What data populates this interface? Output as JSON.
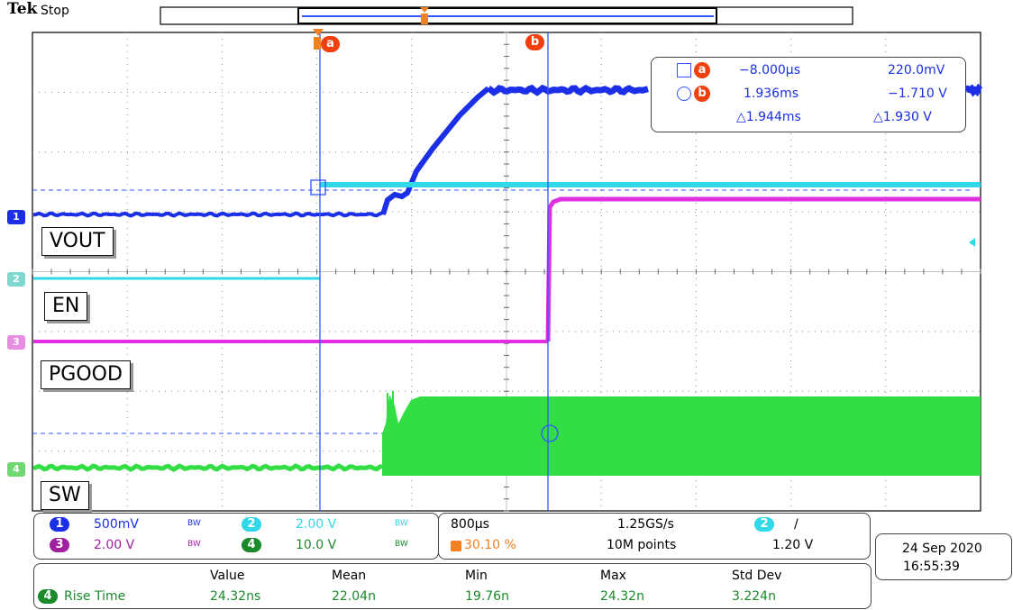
{
  "header": {
    "brand": "Tek",
    "state": "Stop"
  },
  "colors": {
    "ch1": "#1a2fe6",
    "ch2": "#30d8e8",
    "ch3": "#e030e0",
    "ch4": "#33dd44",
    "cursor": "#3355ff",
    "accent": "#f08020"
  },
  "traces": [
    {
      "channel": "1",
      "label": "VOUT"
    },
    {
      "channel": "2",
      "label": "EN"
    },
    {
      "channel": "3",
      "label": "PGOOD"
    },
    {
      "channel": "4",
      "label": "SW"
    }
  ],
  "cursors": {
    "a": {
      "id": "a",
      "time": "−8.000µs",
      "value": "220.0mV"
    },
    "b": {
      "id": "b",
      "time": "1.936ms",
      "value": "−1.710 V"
    },
    "delta": {
      "time": "△1.944ms",
      "value": "△1.930 V"
    }
  },
  "channels": [
    {
      "num": "1",
      "scale": "500mV",
      "bw": "BW"
    },
    {
      "num": "2",
      "scale": "2.00 V",
      "bw": "BW"
    },
    {
      "num": "3",
      "scale": "2.00 V",
      "bw": "BW"
    },
    {
      "num": "4",
      "scale": "10.0 V",
      "bw": "BW"
    }
  ],
  "horizontal": {
    "scale": "800µs",
    "trigger_position": "30.10 %",
    "sample_rate": "1.25GS/s",
    "record_length": "10M points"
  },
  "trigger": {
    "source": "2",
    "slope": "/",
    "level": "1.20 V"
  },
  "timestamp": {
    "date": "24 Sep  2020",
    "time": "16:55:39"
  },
  "measurements": {
    "headers": [
      "Value",
      "Mean",
      "Min",
      "Max",
      "Std Dev"
    ],
    "rows": [
      {
        "source": "4",
        "name": "Rise Time",
        "value": "24.32ns",
        "mean": "22.04n",
        "min": "19.76n",
        "max": "24.32n",
        "std_dev": "3.224n"
      }
    ]
  }
}
